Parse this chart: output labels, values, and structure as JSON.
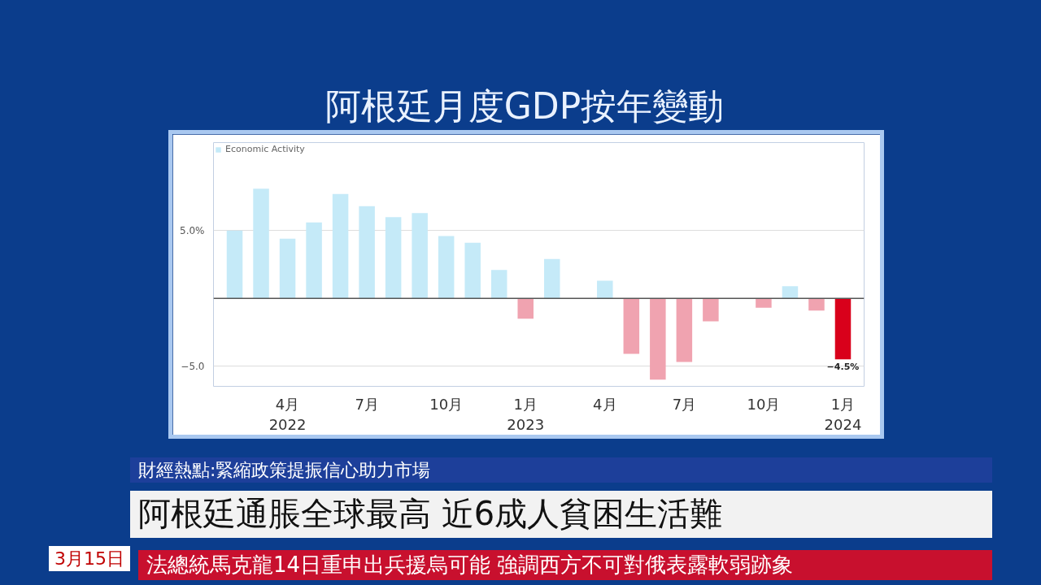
{
  "chart_data": {
    "type": "bar",
    "title": "阿根廷月度GDP按年變動",
    "categories": [
      null,
      null,
      "4月\n2022",
      null,
      null,
      "7月",
      null,
      null,
      "10月",
      null,
      null,
      "1月\n2023",
      null,
      null,
      "4月",
      null,
      null,
      "7月",
      null,
      null,
      "10月",
      null,
      null,
      "1月\n2024"
    ],
    "series": [
      {
        "name": "Economic Activity",
        "values": [
          5.0,
          8.1,
          4.4,
          5.6,
          7.7,
          6.8,
          6.0,
          6.3,
          4.6,
          4.1,
          2.1,
          -1.5,
          2.9,
          0.0,
          1.3,
          -4.1,
          -6.0,
          -4.7,
          -1.7,
          0.0,
          -0.7,
          0.9,
          -0.9,
          -4.5
        ],
        "colors": [
          "#c5eaf8",
          "#c5eaf8",
          "#c5eaf8",
          "#c5eaf8",
          "#c5eaf8",
          "#c5eaf8",
          "#c5eaf8",
          "#c5eaf8",
          "#c5eaf8",
          "#c5eaf8",
          "#c5eaf8",
          "#f0a3b0",
          "#c5eaf8",
          "#c5eaf8",
          "#c5eaf8",
          "#f0a3b0",
          "#f0a3b0",
          "#f0a3b0",
          "#f0a3b0",
          "#f0a3b0",
          "#f0a3b0",
          "#c5eaf8",
          "#f0a3b0",
          "#d9001b"
        ],
        "value_labels": [
          null,
          null,
          null,
          null,
          null,
          null,
          null,
          null,
          null,
          null,
          null,
          null,
          null,
          null,
          null,
          null,
          null,
          null,
          null,
          null,
          null,
          null,
          null,
          "−4.5%"
        ]
      }
    ],
    "ylim": [
      -6.5,
      11.5
    ],
    "yticks": [
      {
        "value": 5,
        "label": "5.0%"
      },
      {
        "value": 0,
        "label": null
      },
      {
        "value": -5,
        "label": "−5.0"
      }
    ],
    "grid": "y",
    "legend": "top left",
    "ref_lines": [
      {
        "axis": "y",
        "value": 0,
        "color": "#555555"
      }
    ],
    "annotations": [
      "財經熱點:緊縮政策提振信心助力市場",
      "阿根廷通脹全球最高 近6成人貧困生活難",
      "3月15日",
      "法總統馬克龍14日重申出兵援烏可能 強調西方不可對俄表露軟弱跡象"
    ]
  }
}
